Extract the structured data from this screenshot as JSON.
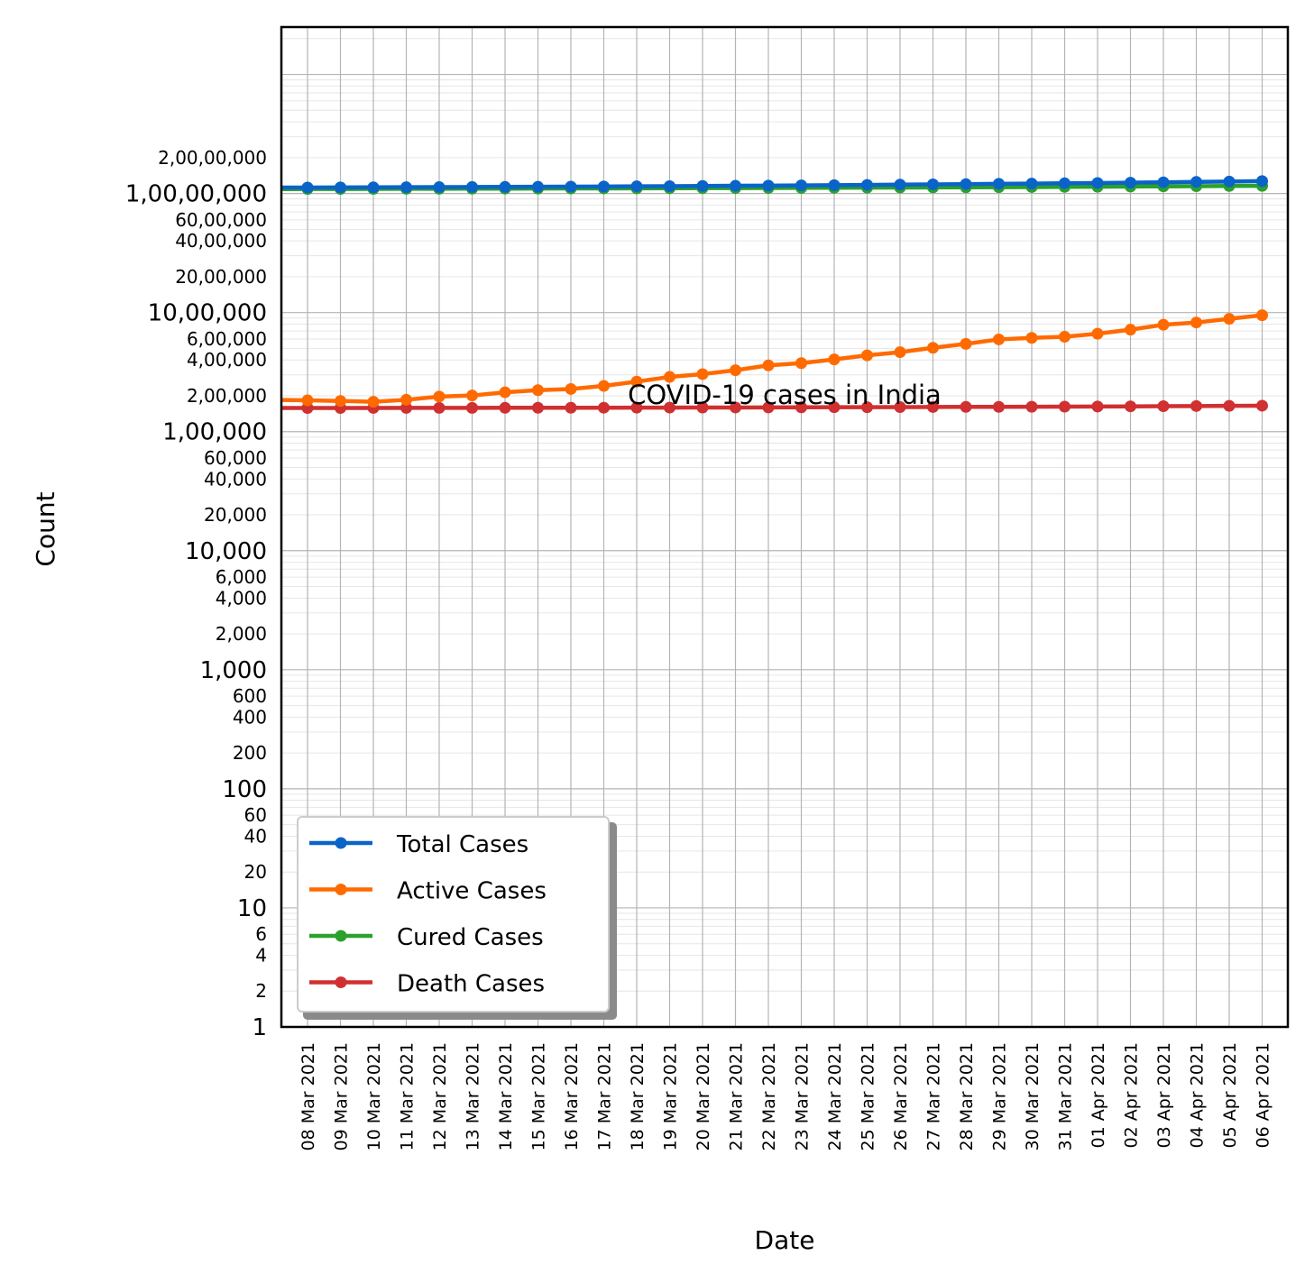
{
  "chart_data": {
    "type": "line",
    "title": "",
    "annotation": "COVID-19 cases in India",
    "xlabel": "Date",
    "ylabel": "Count",
    "yscale": "log",
    "ylim": [
      1,
      250000000
    ],
    "grid": true,
    "legend_position": "lower-left",
    "categories": [
      "08 Mar 2021",
      "09 Mar 2021",
      "10 Mar 2021",
      "11 Mar 2021",
      "12 Mar 2021",
      "13 Mar 2021",
      "14 Mar 2021",
      "15 Mar 2021",
      "16 Mar 2021",
      "17 Mar 2021",
      "18 Mar 2021",
      "19 Mar 2021",
      "20 Mar 2021",
      "21 Mar 2021",
      "22 Mar 2021",
      "23 Mar 2021",
      "24 Mar 2021",
      "25 Mar 2021",
      "26 Mar 2021",
      "27 Mar 2021",
      "28 Mar 2021",
      "29 Mar 2021",
      "30 Mar 2021",
      "31 Mar 2021",
      "01 Apr 2021",
      "02 Apr 2021",
      "03 Apr 2021",
      "04 Apr 2021",
      "05 Apr 2021",
      "06 Apr 2021"
    ],
    "yticks_major": [
      {
        "value": 1,
        "label": "1"
      },
      {
        "value": 10,
        "label": "10"
      },
      {
        "value": 100,
        "label": "100"
      },
      {
        "value": 1000,
        "label": "1,000"
      },
      {
        "value": 10000,
        "label": "10,000"
      },
      {
        "value": 100000,
        "label": "1,00,000"
      },
      {
        "value": 1000000,
        "label": "10,00,000"
      },
      {
        "value": 10000000,
        "label": "1,00,00,000"
      }
    ],
    "yticks_minor": [
      {
        "value": 2,
        "label": "2"
      },
      {
        "value": 4,
        "label": "4"
      },
      {
        "value": 6,
        "label": "6"
      },
      {
        "value": 20,
        "label": "20"
      },
      {
        "value": 40,
        "label": "40"
      },
      {
        "value": 60,
        "label": "60"
      },
      {
        "value": 200,
        "label": "200"
      },
      {
        "value": 400,
        "label": "400"
      },
      {
        "value": 600,
        "label": "600"
      },
      {
        "value": 2000,
        "label": "2,000"
      },
      {
        "value": 4000,
        "label": "4,000"
      },
      {
        "value": 6000,
        "label": "6,000"
      },
      {
        "value": 20000,
        "label": "20,000"
      },
      {
        "value": 40000,
        "label": "40,000"
      },
      {
        "value": 60000,
        "label": "60,000"
      },
      {
        "value": 200000,
        "label": "2,00,000"
      },
      {
        "value": 400000,
        "label": "4,00,000"
      },
      {
        "value": 600000,
        "label": "6,00,000"
      },
      {
        "value": 2000000,
        "label": "20,00,000"
      },
      {
        "value": 4000000,
        "label": "40,00,000"
      },
      {
        "value": 6000000,
        "label": "60,00,000"
      },
      {
        "value": 20000000,
        "label": "2,00,00,000"
      }
    ],
    "series": [
      {
        "name": "Total Cases",
        "color": "#0a64c8",
        "values": [
          11230000,
          11245000,
          11262000,
          11285000,
          11308000,
          11333000,
          11359000,
          11385000,
          11413000,
          11448000,
          11484000,
          11524000,
          11564000,
          11610000,
          11657000,
          11705000,
          11752000,
          11805000,
          11866000,
          11926000,
          11990000,
          12055000,
          12117000,
          12179000,
          12250000,
          12330000,
          12415000,
          12500000,
          12600000,
          12700000
        ]
      },
      {
        "name": "Active Cases",
        "color": "#ff6a00",
        "values": [
          183000,
          181000,
          178000,
          185000,
          197000,
          201000,
          214000,
          223000,
          228000,
          242000,
          263000,
          288000,
          304000,
          328000,
          360000,
          376000,
          404000,
          437000,
          465000,
          506000,
          546000,
          595000,
          613000,
          626000,
          664000,
          718000,
          790000,
          825000,
          886000,
          950000
        ]
      },
      {
        "name": "Cured Cases",
        "color": "#2ca02c",
        "values": [
          10900000,
          10915000,
          10930000,
          10945000,
          10960000,
          10975000,
          10990000,
          11005000,
          11020000,
          11035000,
          11050000,
          11070000,
          11090000,
          11110000,
          11130000,
          11150000,
          11170000,
          11190000,
          11210000,
          11240000,
          11270000,
          11300000,
          11330000,
          11360000,
          11400000,
          11440000,
          11480000,
          11520000,
          11560000,
          11600000
        ]
      },
      {
        "name": "Death Cases",
        "color": "#d03030",
        "values": [
          157900,
          157980,
          158060,
          158150,
          158270,
          158390,
          158490,
          158600,
          158700,
          158810,
          158970,
          159150,
          159320,
          159510,
          159740,
          160030,
          160270,
          160470,
          160710,
          160990,
          161290,
          161530,
          161850,
          162130,
          162500,
          163030,
          163500,
          164100,
          164700,
          165100
        ]
      }
    ]
  }
}
